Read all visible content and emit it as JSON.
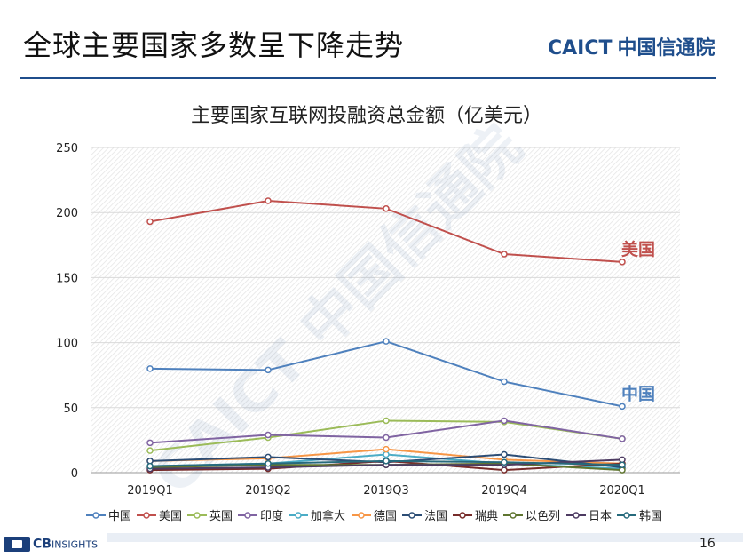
{
  "slide": {
    "title": "全球主要国家多数呈下降走势",
    "page_number": "16"
  },
  "logo": {
    "en": "CAICT",
    "cn": "中国信通院"
  },
  "watermark": "CAICT 中国信通院",
  "footer_logo": {
    "main": "CB",
    "sub": "INSIGHTS"
  },
  "chart_data": {
    "type": "line",
    "title": "主要国家互联网投融资总金额（亿美元）",
    "categories": [
      "2019Q1",
      "2019Q2",
      "2019Q3",
      "2019Q4",
      "2020Q1"
    ],
    "ylim": [
      0,
      250
    ],
    "yticks": [
      0,
      50,
      100,
      150,
      200,
      250
    ],
    "grid": true,
    "legend": "bottom",
    "series": [
      {
        "name": "中国",
        "color": "#4f81bd",
        "values": [
          80,
          79,
          101,
          70,
          51
        ]
      },
      {
        "name": "美国",
        "color": "#c0504d",
        "values": [
          193,
          209,
          203,
          168,
          162
        ]
      },
      {
        "name": "英国",
        "color": "#9bbb59",
        "values": [
          17,
          27,
          40,
          39,
          26
        ]
      },
      {
        "name": "印度",
        "color": "#8064a2",
        "values": [
          23,
          29,
          27,
          40,
          26
        ]
      },
      {
        "name": "加拿大",
        "color": "#4bacc6",
        "values": [
          5,
          7,
          14,
          7,
          3
        ]
      },
      {
        "name": "德国",
        "color": "#f79646",
        "values": [
          9,
          11,
          18,
          10,
          7
        ]
      },
      {
        "name": "法国",
        "color": "#2c4d75",
        "values": [
          9,
          12,
          8,
          14,
          4
        ]
      },
      {
        "name": "瑞典",
        "color": "#772c2a",
        "values": [
          2,
          3,
          9,
          2,
          7
        ]
      },
      {
        "name": "以色列",
        "color": "#5f7530",
        "values": [
          4,
          6,
          6,
          7,
          2
        ]
      },
      {
        "name": "日本",
        "color": "#4d3b62",
        "values": [
          3,
          4,
          6,
          6,
          10
        ]
      },
      {
        "name": "韩国",
        "color": "#276a7c",
        "values": [
          5,
          7,
          9,
          8,
          6
        ]
      }
    ],
    "annotations": [
      {
        "text": "美国",
        "series": "美国",
        "color": "#c0504d"
      },
      {
        "text": "中国",
        "series": "中国",
        "color": "#4f81bd"
      }
    ]
  }
}
